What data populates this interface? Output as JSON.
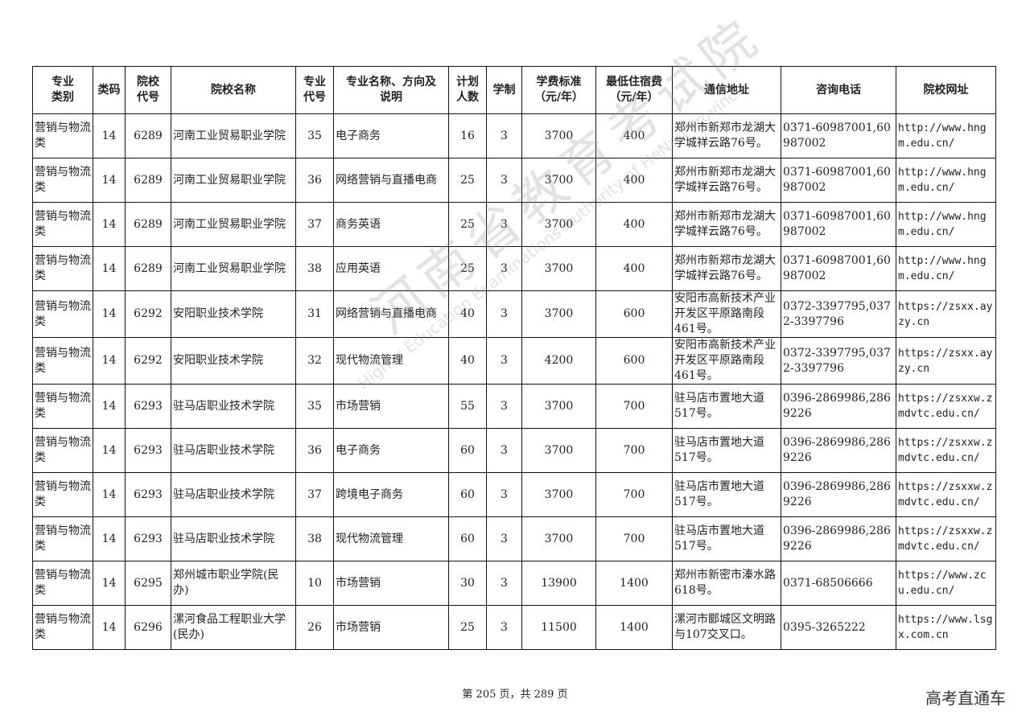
{
  "table": {
    "header": [
      "专业\n类别",
      "类码",
      "院校\n代号",
      "院校名称",
      "专业\n代号",
      "专业名称、方向及\n说明",
      "计划\n人数",
      "学制",
      "学费标准\n（元/年）",
      "最低住宿费\n（元/年）",
      "通信地址",
      "咨询电话",
      "院校网址"
    ],
    "rows": [
      [
        "营销与物流类",
        14,
        6289,
        "河南工业贸易职业学院",
        35,
        "电子商务",
        16,
        3,
        3700,
        400,
        "郑州市新郑市龙湖大学城祥云路76号。",
        "0371-60987001,60987002",
        "http://www.hngm.edu.cn/"
      ],
      [
        "营销与物流类",
        14,
        6289,
        "河南工业贸易职业学院",
        36,
        "网络营销与直播电商",
        25,
        3,
        3700,
        400,
        "郑州市新郑市龙湖大学城祥云路76号。",
        "0371-60987001,60987002",
        "http://www.hngm.edu.cn/"
      ],
      [
        "营销与物流类",
        14,
        6289,
        "河南工业贸易职业学院",
        37,
        "商务英语",
        25,
        3,
        3700,
        400,
        "郑州市新郑市龙湖大学城祥云路76号。",
        "0371-60987001,60987002",
        "http://www.hngm.edu.cn/"
      ],
      [
        "营销与物流类",
        14,
        6289,
        "河南工业贸易职业学院",
        38,
        "应用英语",
        25,
        3,
        3700,
        400,
        "郑州市新郑市龙湖大学城祥云路76号。",
        "0371-60987001,60987002",
        "http://www.hngm.edu.cn/"
      ],
      [
        "营销与物流类",
        14,
        6292,
        "安阳职业技术学院",
        31,
        "网络营销与直播电商",
        40,
        3,
        3700,
        600,
        "安阳市高新技术产业开发区平原路南段461号。",
        "0372-3397795,0372-3397796",
        "https://zsxx.ayzy.cn"
      ],
      [
        "营销与物流类",
        14,
        6292,
        "安阳职业技术学院",
        32,
        "现代物流管理",
        40,
        3,
        4200,
        600,
        "安阳市高新技术产业开发区平原路南段461号。",
        "0372-3397795,0372-3397796",
        "https://zsxx.ayzy.cn"
      ],
      [
        "营销与物流类",
        14,
        6293,
        "驻马店职业技术学院",
        35,
        "市场营销",
        55,
        3,
        3700,
        700,
        "驻马店市置地大道517号。",
        "0396-2869986,2869226",
        "https://zsxxw.zmdvtc.edu.cn/"
      ],
      [
        "营销与物流类",
        14,
        6293,
        "驻马店职业技术学院",
        36,
        "电子商务",
        60,
        3,
        3700,
        700,
        "驻马店市置地大道517号。",
        "0396-2869986,2869226",
        "https://zsxxw.zmdvtc.edu.cn/"
      ],
      [
        "营销与物流类",
        14,
        6293,
        "驻马店职业技术学院",
        37,
        "跨境电子商务",
        60,
        3,
        3700,
        700,
        "驻马店市置地大道517号。",
        "0396-2869986,2869226",
        "https://zsxxw.zmdvtc.edu.cn/"
      ],
      [
        "营销与物流类",
        14,
        6293,
        "驻马店职业技术学院",
        38,
        "现代物流管理",
        60,
        3,
        3700,
        700,
        "驻马店市置地大道517号。",
        "0396-2869986,2869226",
        "https://zsxxw.zmdvtc.edu.cn/"
      ],
      [
        "营销与物流类",
        14,
        6295,
        "郑州城市职业学院(民办)",
        10,
        "市场营销",
        30,
        3,
        13900,
        1400,
        "郑州市新密市溱水路618号。",
        "0371-68506666",
        "https://www.zcu.edu.cn/"
      ],
      [
        "营销与物流类",
        14,
        6296,
        "漯河食品工程职业大学(民办)",
        26,
        "市场营销",
        25,
        3,
        11500,
        1400,
        "漯河市郾城区文明路与107交叉口。",
        "0395-3265222",
        "https://www.lsgx.com.cn"
      ]
    ]
  },
  "watermark": {
    "title": "河南省教育考试院",
    "subtitle": "Higher Education Examinations Authority of HeNan Province"
  },
  "footer": {
    "page": "第 205 页，共 289 页",
    "brand": "高考直通车"
  }
}
